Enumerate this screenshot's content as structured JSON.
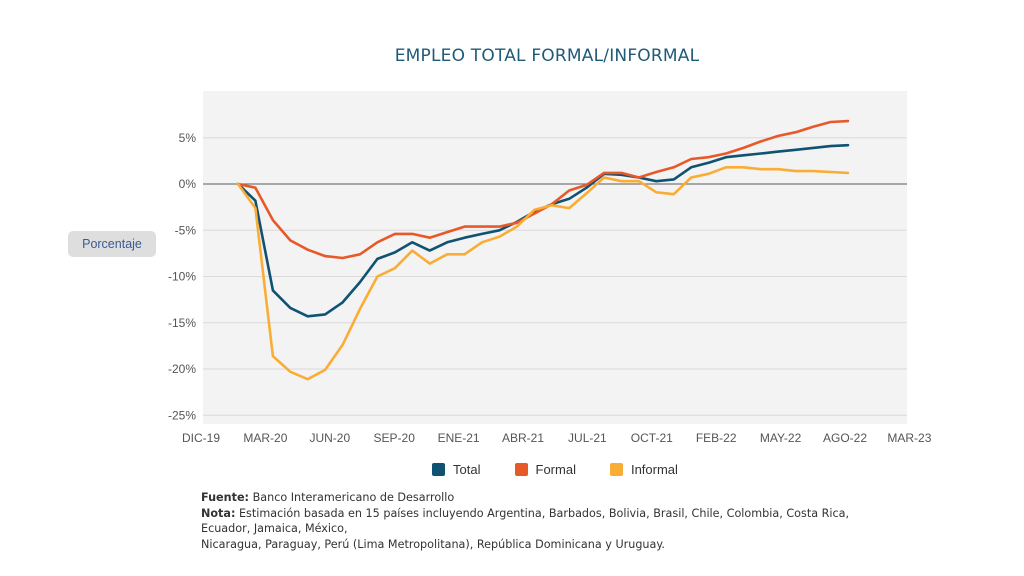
{
  "chart_data": {
    "type": "line",
    "title": "EMPLEO TOTAL FORMAL/INFORMAL",
    "ylabel": "Porcentaje",
    "xlabel": "",
    "ylim": [
      -25,
      10
    ],
    "yticks": [
      5,
      0,
      -5,
      -10,
      -15,
      -20,
      -25
    ],
    "ytick_labels": [
      "5%",
      "0%",
      "-5%",
      "-10%",
      "-15%",
      "-20%",
      "-25%"
    ],
    "xtick_labels": [
      "DIC-19",
      "MAR-20",
      "JUN-20",
      "SEP-20",
      "ENE-21",
      "ABR-21",
      "JUL-21",
      "OCT-21",
      "FEB-22",
      "MAY-22",
      "AGO-22",
      "MAR-23"
    ],
    "grid": true,
    "legend_position": "bottom",
    "series": [
      {
        "name": "Total",
        "color": "#0f5272",
        "values": [
          0,
          -1.8,
          -11.5,
          -13.4,
          -14.3,
          -14.1,
          -12.8,
          -10.6,
          -8.1,
          -7.4,
          -6.3,
          -7.2,
          -6.3,
          -5.8,
          -5.4,
          -5.0,
          -4.1,
          -3.0,
          -2.2,
          -1.6,
          -0.4,
          1.1,
          1.0,
          0.7,
          0.3,
          0.5,
          1.8,
          2.3,
          2.9,
          3.1,
          3.3,
          3.5,
          3.7,
          3.9,
          4.1,
          4.2
        ]
      },
      {
        "name": "Formal",
        "color": "#e8592a",
        "values": [
          0,
          -0.4,
          -3.9,
          -6.1,
          -7.1,
          -7.8,
          -8.0,
          -7.6,
          -6.3,
          -5.4,
          -5.4,
          -5.8,
          -5.2,
          -4.6,
          -4.6,
          -4.6,
          -4.2,
          -3.2,
          -2.2,
          -0.7,
          -0.1,
          1.2,
          1.2,
          0.7,
          1.3,
          1.8,
          2.7,
          2.9,
          3.3,
          3.9,
          4.6,
          5.2,
          5.6,
          6.2,
          6.7,
          6.8
        ]
      },
      {
        "name": "Informal",
        "color": "#f9ad35",
        "values": [
          0,
          -2.6,
          -18.6,
          -20.3,
          -21.1,
          -20.1,
          -17.4,
          -13.5,
          -10.0,
          -9.1,
          -7.2,
          -8.6,
          -7.6,
          -7.6,
          -6.3,
          -5.7,
          -4.6,
          -2.8,
          -2.3,
          -2.6,
          -1.0,
          0.7,
          0.3,
          0.3,
          -0.9,
          -1.1,
          0.7,
          1.1,
          1.8,
          1.8,
          1.6,
          1.6,
          1.4,
          1.4,
          1.3,
          1.2
        ]
      }
    ]
  },
  "legend": [
    {
      "label": "Total",
      "color": "#0f5272"
    },
    {
      "label": "Formal",
      "color": "#e8592a"
    },
    {
      "label": "Informal",
      "color": "#f9ad35"
    }
  ],
  "notes": {
    "source_label": "Fuente:",
    "source_text": " Banco Interamericano  de Desarrollo",
    "note_label": "Nota:",
    "note_text_1": " Estimación basada en 15 países incluyendo Argentina, Barbados, Bolivia, Brasil, Chile, Colombia, Costa Rica, Ecuador, Jamaica, México,",
    "note_text_2": "Nicaragua, Paraguay, Perú (Lima Metropolitana),  República Dominicana y Uruguay."
  }
}
